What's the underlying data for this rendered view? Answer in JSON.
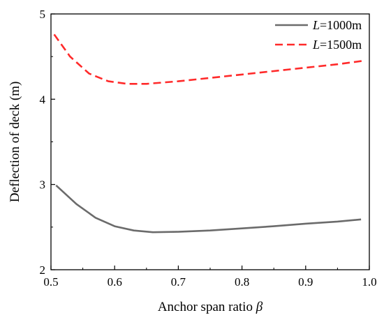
{
  "chart_data": {
    "type": "line",
    "title": "",
    "xlabel": "Anchor span ratio",
    "xlabel_symbol": "β",
    "ylabel": "Deflection of deck (m)",
    "xlim": [
      0.5,
      1.0
    ],
    "ylim": [
      2,
      5
    ],
    "x_ticks": [
      "0.5",
      "0.6",
      "0.7",
      "0.8",
      "0.9",
      "1.0"
    ],
    "y_ticks": [
      "2",
      "3",
      "4",
      "5"
    ],
    "grid": false,
    "legend_position": "top-right",
    "series": [
      {
        "name": "L=1000m",
        "name_symbol": "L",
        "name_suffix": "=1000m",
        "color": "#6b6b6b",
        "line_style": "solid",
        "x": [
          0.508,
          0.54,
          0.57,
          0.6,
          0.63,
          0.66,
          0.7,
          0.75,
          0.8,
          0.85,
          0.9,
          0.95,
          0.987
        ],
        "y": [
          2.99,
          2.77,
          2.61,
          2.51,
          2.46,
          2.44,
          2.445,
          2.46,
          2.485,
          2.51,
          2.54,
          2.565,
          2.59
        ]
      },
      {
        "name": "L=1500m",
        "name_symbol": "L",
        "name_suffix": "=1500m",
        "color": "#ff2a2a",
        "line_style": "dashed",
        "x": [
          0.505,
          0.53,
          0.56,
          0.59,
          0.62,
          0.65,
          0.7,
          0.75,
          0.8,
          0.85,
          0.9,
          0.95,
          0.99
        ],
        "y": [
          4.76,
          4.5,
          4.3,
          4.21,
          4.18,
          4.18,
          4.21,
          4.25,
          4.29,
          4.33,
          4.37,
          4.41,
          4.45
        ]
      }
    ]
  }
}
